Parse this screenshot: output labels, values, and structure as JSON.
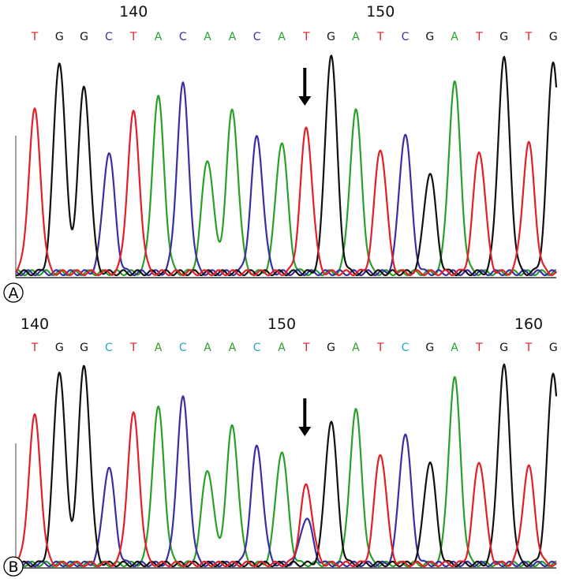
{
  "chart_data": [
    {
      "type": "line",
      "panel_label": "A",
      "position_labels": [
        {
          "text": "140",
          "index": 4
        },
        {
          "text": "150",
          "index": 14
        }
      ],
      "sequence": [
        "T",
        "G",
        "G",
        "C",
        "T",
        "A",
        "C",
        "A",
        "A",
        "C",
        "A",
        "T",
        "G",
        "A",
        "T",
        "C",
        "G",
        "A",
        "T",
        "G",
        "T",
        "G"
      ],
      "peak_heights": [
        0.74,
        0.97,
        0.85,
        0.55,
        0.73,
        0.8,
        0.86,
        0.52,
        0.74,
        0.62,
        0.6,
        0.66,
        1.0,
        0.74,
        0.57,
        0.64,
        0.46,
        0.87,
        0.56,
        0.98,
        0.59,
        0.97
      ],
      "arrow_index": 11,
      "secondary_peaks": []
    },
    {
      "type": "line",
      "panel_label": "B",
      "position_labels": [
        {
          "text": "140",
          "index": 0
        },
        {
          "text": "150",
          "index": 10
        },
        {
          "text": "160",
          "index": 20
        }
      ],
      "sequence": [
        "T",
        "G",
        "G",
        "C",
        "T",
        "A",
        "C",
        "A",
        "A",
        "C",
        "A",
        "T",
        "G",
        "A",
        "T",
        "C",
        "G",
        "A",
        "T",
        "G",
        "T",
        "G"
      ],
      "peak_heights": [
        0.73,
        0.96,
        0.98,
        0.48,
        0.74,
        0.77,
        0.82,
        0.47,
        0.68,
        0.58,
        0.56,
        0.39,
        0.71,
        0.76,
        0.55,
        0.65,
        0.51,
        0.92,
        0.51,
        0.98,
        0.48,
        0.95
      ],
      "arrow_index": 11,
      "secondary_peaks": [
        {
          "index": 11,
          "base": "C",
          "height": 0.23
        }
      ]
    }
  ],
  "colors": {
    "A": "#2aa02a",
    "C": "#3a2fa0",
    "G": "#111111",
    "T": "#e0202a",
    "C_label_panel_A": "#3a2fa0",
    "C_label_panel_B": "#29a3c4"
  }
}
